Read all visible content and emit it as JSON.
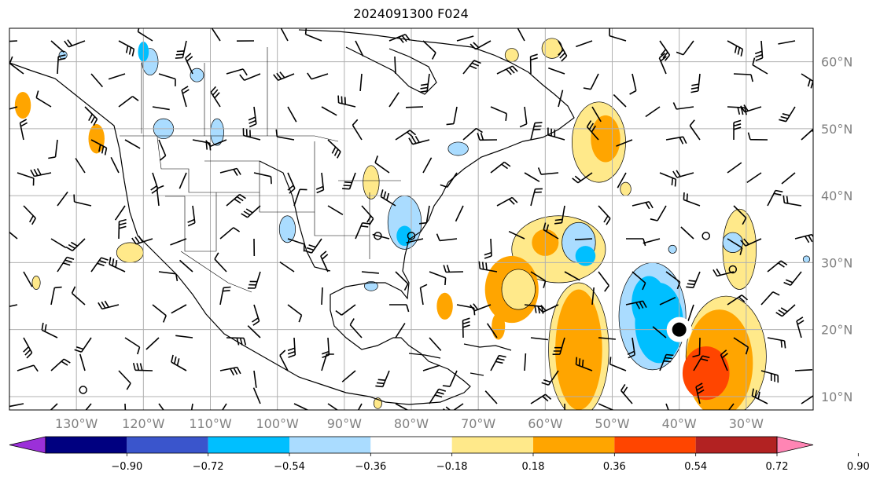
{
  "title": "2024091300 F024",
  "map": {
    "lon_min": -140,
    "lon_max": -20,
    "lat_min": 8,
    "lat_max": 65,
    "grid_lons": [
      -130,
      -120,
      -110,
      -100,
      -90,
      -80,
      -70,
      -60,
      -50,
      -40,
      -30
    ],
    "grid_lats": [
      10,
      20,
      30,
      40,
      50,
      60
    ],
    "lon_labels": [
      "130°W",
      "120°W",
      "110°W",
      "100°W",
      "90°W",
      "80°W",
      "70°W",
      "60°W",
      "50°W",
      "40°W",
      "30°W"
    ],
    "lat_labels": [
      "10°N",
      "20°N",
      "30°N",
      "40°N",
      "50°N",
      "60°N"
    ],
    "label_color": "#808080",
    "grid_color": "#b0b0b0"
  },
  "colorbar": {
    "levels": [
      "−0.90",
      "−0.72",
      "−0.54",
      "−0.36",
      "−0.18",
      "0.18",
      "0.36",
      "0.54",
      "0.72",
      "0.90"
    ],
    "colors": [
      "#9b30d9",
      "#000080",
      "#3a55cc",
      "#00bfff",
      "#aadcff",
      "#ffffff",
      "#ffe98a",
      "#ffa500",
      "#ff4500",
      "#b22222",
      "#ff85b4"
    ]
  },
  "features": {
    "positive_blobs": [
      {
        "lon": -52,
        "lat": 48,
        "rlon": 4,
        "rlat": 6,
        "level": 1
      },
      {
        "lon": -51,
        "lat": 48.5,
        "rlon": 2.2,
        "rlat": 3.5,
        "level": 2
      },
      {
        "lon": -58,
        "lat": 32,
        "rlon": 7,
        "rlat": 5,
        "level": 1
      },
      {
        "lon": -60,
        "lat": 33,
        "rlon": 2,
        "rlat": 2,
        "level": 2
      },
      {
        "lon": -65,
        "lat": 26,
        "rlon": 4,
        "rlat": 5,
        "level": 2
      },
      {
        "lon": -64,
        "lat": 26,
        "rlon": 2.5,
        "rlat": 3,
        "level": 1
      },
      {
        "lon": -55,
        "lat": 17,
        "rlon": 4.5,
        "rlat": 10,
        "level": 1
      },
      {
        "lon": -55,
        "lat": 17,
        "rlon": 3.5,
        "rlat": 9,
        "level": 2
      },
      {
        "lon": -33,
        "lat": 16,
        "rlon": 6,
        "rlat": 9,
        "level": 1
      },
      {
        "lon": -34,
        "lat": 15,
        "rlon": 5,
        "rlat": 8,
        "level": 2
      },
      {
        "lon": -36,
        "lat": 13.5,
        "rlon": 3.5,
        "rlat": 4,
        "level": 3
      },
      {
        "lon": -31,
        "lat": 32,
        "rlon": 2.5,
        "rlat": 6,
        "level": 1
      },
      {
        "lon": -138,
        "lat": 53.5,
        "rlon": 1.2,
        "rlat": 2,
        "level": 2
      },
      {
        "lon": -127,
        "lat": 48.5,
        "rlon": 1.2,
        "rlat": 2.2,
        "level": 2
      },
      {
        "lon": -122,
        "lat": 31.5,
        "rlon": 2,
        "rlat": 1.5,
        "level": 1
      },
      {
        "lon": -86,
        "lat": 42,
        "rlon": 1.2,
        "rlat": 2.5,
        "level": 1
      },
      {
        "lon": -75,
        "lat": 23.5,
        "rlon": 1.2,
        "rlat": 2,
        "level": 2
      },
      {
        "lon": -67,
        "lat": 20.5,
        "rlon": 1,
        "rlat": 2,
        "level": 2
      },
      {
        "lon": -48,
        "lat": 41,
        "rlon": 0.8,
        "rlat": 1,
        "level": 1
      },
      {
        "lon": -65,
        "lat": 61,
        "rlon": 1,
        "rlat": 1,
        "level": 1
      },
      {
        "lon": -59,
        "lat": 62,
        "rlon": 1.5,
        "rlat": 1.5,
        "level": 1
      },
      {
        "lon": -136,
        "lat": 27,
        "rlon": 0.6,
        "rlat": 1,
        "level": 1
      },
      {
        "lon": -85,
        "lat": 9,
        "rlon": 0.6,
        "rlat": 0.8,
        "level": 1
      }
    ],
    "negative_blobs": [
      {
        "lon": -44,
        "lat": 22,
        "rlon": 5,
        "rlat": 8,
        "level": 1
      },
      {
        "lon": -43,
        "lat": 21,
        "rlon": 3.6,
        "rlat": 6,
        "level": 2
      },
      {
        "lon": -44.5,
        "lat": 24,
        "rlon": 2.6,
        "rlat": 4,
        "level": 2
      },
      {
        "lon": -81,
        "lat": 36,
        "rlon": 2.5,
        "rlat": 4,
        "level": 1
      },
      {
        "lon": -81,
        "lat": 34,
        "rlon": 1.2,
        "rlat": 1.5,
        "level": 2
      },
      {
        "lon": -55,
        "lat": 33,
        "rlon": 2.5,
        "rlat": 3,
        "level": 1
      },
      {
        "lon": -54,
        "lat": 31,
        "rlon": 1.5,
        "rlat": 1.5,
        "level": 2
      },
      {
        "lon": -119,
        "lat": 60,
        "rlon": 1.2,
        "rlat": 2,
        "level": 1
      },
      {
        "lon": -112,
        "lat": 58,
        "rlon": 1,
        "rlat": 1,
        "level": 1
      },
      {
        "lon": -120,
        "lat": 61.5,
        "rlon": 0.8,
        "rlat": 1.5,
        "level": 2
      },
      {
        "lon": -109,
        "lat": 49.5,
        "rlon": 1,
        "rlat": 2,
        "level": 1
      },
      {
        "lon": -117,
        "lat": 50,
        "rlon": 1.5,
        "rlat": 1.5,
        "level": 1
      },
      {
        "lon": -73,
        "lat": 47,
        "rlon": 1.5,
        "rlat": 1,
        "level": 1
      },
      {
        "lon": -98.5,
        "lat": 35,
        "rlon": 1.2,
        "rlat": 2,
        "level": 1
      },
      {
        "lon": -86,
        "lat": 26.5,
        "rlon": 1,
        "rlat": 0.7,
        "level": 1
      },
      {
        "lon": -32,
        "lat": 33,
        "rlon": 1.5,
        "rlat": 1.5,
        "level": 1
      },
      {
        "lon": -41,
        "lat": 32,
        "rlon": 0.6,
        "rlat": 0.6,
        "level": 1
      },
      {
        "lon": -21,
        "lat": 30.5,
        "rlon": 0.5,
        "rlat": 0.5,
        "level": 1
      },
      {
        "lon": -132,
        "lat": 61,
        "rlon": 0.6,
        "rlat": 0.6,
        "level": 1
      }
    ],
    "markers": [
      {
        "lon": -40,
        "lat": 20,
        "size": "large"
      },
      {
        "lon": -80,
        "lat": 34,
        "size": "small"
      },
      {
        "lon": -85,
        "lat": 34,
        "size": "small"
      },
      {
        "lon": -36,
        "lat": 34,
        "size": "small"
      },
      {
        "lon": -32,
        "lat": 29,
        "size": "small"
      },
      {
        "lon": -129,
        "lat": 11,
        "size": "small"
      }
    ]
  }
}
